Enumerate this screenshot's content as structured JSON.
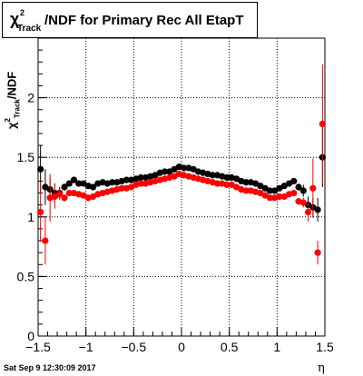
{
  "chart_data": {
    "type": "scatter",
    "title": {
      "symbol": "χ",
      "superscript": "2",
      "subscript": "Track",
      "text": "/NDF for Primary Rec All EtapT"
    },
    "xlabel": "η",
    "ylabel": {
      "symbol": "χ",
      "superscript": "2",
      "subscript": "Track",
      "text": "/NDF"
    },
    "xlim": [
      -1.5,
      1.5
    ],
    "ylim": [
      0,
      2.5
    ],
    "xticks": [
      -1.5,
      -1,
      -0.5,
      0,
      0.5,
      1,
      1.5
    ],
    "xtick_labels": [
      "−1.5",
      "−1",
      "−0.5",
      "0",
      "0.5",
      "1",
      "1.5"
    ],
    "yticks": [
      0,
      0.5,
      1,
      1.5,
      2
    ],
    "ytick_labels": [
      "0",
      "0.5",
      "1",
      "1.5",
      "2"
    ],
    "grid": true,
    "series": [
      {
        "color": "#000000",
        "x": [
          -1.475,
          -1.425,
          -1.375,
          -1.325,
          -1.275,
          -1.225,
          -1.175,
          -1.125,
          -1.075,
          -1.025,
          -0.975,
          -0.925,
          -0.875,
          -0.825,
          -0.775,
          -0.725,
          -0.675,
          -0.625,
          -0.575,
          -0.525,
          -0.475,
          -0.425,
          -0.375,
          -0.325,
          -0.275,
          -0.225,
          -0.175,
          -0.125,
          -0.075,
          -0.025,
          0.025,
          0.075,
          0.125,
          0.175,
          0.225,
          0.275,
          0.325,
          0.375,
          0.425,
          0.475,
          0.525,
          0.575,
          0.625,
          0.675,
          0.725,
          0.775,
          0.825,
          0.875,
          0.925,
          0.975,
          1.025,
          1.075,
          1.125,
          1.175,
          1.225,
          1.275,
          1.325,
          1.375,
          1.425,
          1.475
        ],
        "y": [
          1.4,
          1.25,
          1.23,
          1.2,
          1.2,
          1.25,
          1.28,
          1.31,
          1.28,
          1.28,
          1.26,
          1.25,
          1.28,
          1.29,
          1.28,
          1.29,
          1.29,
          1.3,
          1.31,
          1.31,
          1.32,
          1.33,
          1.33,
          1.34,
          1.35,
          1.37,
          1.38,
          1.38,
          1.4,
          1.42,
          1.41,
          1.41,
          1.4,
          1.38,
          1.37,
          1.36,
          1.35,
          1.35,
          1.34,
          1.33,
          1.33,
          1.32,
          1.3,
          1.29,
          1.29,
          1.28,
          1.26,
          1.24,
          1.22,
          1.22,
          1.24,
          1.26,
          1.28,
          1.3,
          1.25,
          1.22,
          1.1,
          1.08,
          1.06,
          1.5
        ],
        "err": [
          0.2,
          0.15,
          0.1,
          0.08,
          0.05,
          0.03,
          0.02,
          0.02,
          0.02,
          0.02,
          0.02,
          0.02,
          0.02,
          0.02,
          0.02,
          0.02,
          0.02,
          0.02,
          0.02,
          0.02,
          0.02,
          0.02,
          0.02,
          0.02,
          0.02,
          0.02,
          0.02,
          0.02,
          0.02,
          0.02,
          0.02,
          0.02,
          0.02,
          0.02,
          0.02,
          0.02,
          0.02,
          0.02,
          0.02,
          0.02,
          0.02,
          0.02,
          0.02,
          0.02,
          0.02,
          0.02,
          0.02,
          0.02,
          0.02,
          0.02,
          0.02,
          0.02,
          0.02,
          0.02,
          0.03,
          0.05,
          0.07,
          0.08,
          0.1,
          0.25
        ]
      },
      {
        "color": "#ff0000",
        "x": [
          -1.475,
          -1.425,
          -1.375,
          -1.325,
          -1.275,
          -1.225,
          -1.175,
          -1.125,
          -1.075,
          -1.025,
          -0.975,
          -0.925,
          -0.875,
          -0.825,
          -0.775,
          -0.725,
          -0.675,
          -0.625,
          -0.575,
          -0.525,
          -0.475,
          -0.425,
          -0.375,
          -0.325,
          -0.275,
          -0.225,
          -0.175,
          -0.125,
          -0.075,
          -0.025,
          0.025,
          0.075,
          0.125,
          0.175,
          0.225,
          0.275,
          0.325,
          0.375,
          0.425,
          0.475,
          0.525,
          0.575,
          0.625,
          0.675,
          0.725,
          0.775,
          0.825,
          0.875,
          0.925,
          0.975,
          1.025,
          1.075,
          1.125,
          1.175,
          1.225,
          1.275,
          1.325,
          1.375,
          1.425,
          1.475
        ],
        "y": [
          1.04,
          0.8,
          1.16,
          1.17,
          1.19,
          1.16,
          1.2,
          1.2,
          1.19,
          1.18,
          1.16,
          1.17,
          1.19,
          1.2,
          1.21,
          1.22,
          1.23,
          1.24,
          1.24,
          1.25,
          1.27,
          1.28,
          1.28,
          1.29,
          1.3,
          1.31,
          1.32,
          1.33,
          1.34,
          1.36,
          1.35,
          1.34,
          1.33,
          1.32,
          1.31,
          1.3,
          1.29,
          1.28,
          1.28,
          1.27,
          1.27,
          1.25,
          1.23,
          1.22,
          1.22,
          1.21,
          1.2,
          1.18,
          1.16,
          1.16,
          1.17,
          1.17,
          1.19,
          1.2,
          1.13,
          1.12,
          1.04,
          1.24,
          0.7,
          1.78
        ],
        "err": [
          0.25,
          0.2,
          0.2,
          0.1,
          0.05,
          0.03,
          0.02,
          0.02,
          0.02,
          0.02,
          0.02,
          0.02,
          0.02,
          0.02,
          0.02,
          0.02,
          0.02,
          0.02,
          0.02,
          0.02,
          0.02,
          0.02,
          0.02,
          0.02,
          0.02,
          0.02,
          0.02,
          0.02,
          0.02,
          0.02,
          0.02,
          0.02,
          0.02,
          0.02,
          0.02,
          0.02,
          0.02,
          0.02,
          0.02,
          0.02,
          0.02,
          0.02,
          0.02,
          0.02,
          0.02,
          0.02,
          0.02,
          0.02,
          0.02,
          0.02,
          0.02,
          0.02,
          0.02,
          0.02,
          0.03,
          0.04,
          0.08,
          0.25,
          0.1,
          0.5
        ]
      }
    ]
  },
  "timestamp": "Sat Sep  9 12:30:09 2017"
}
